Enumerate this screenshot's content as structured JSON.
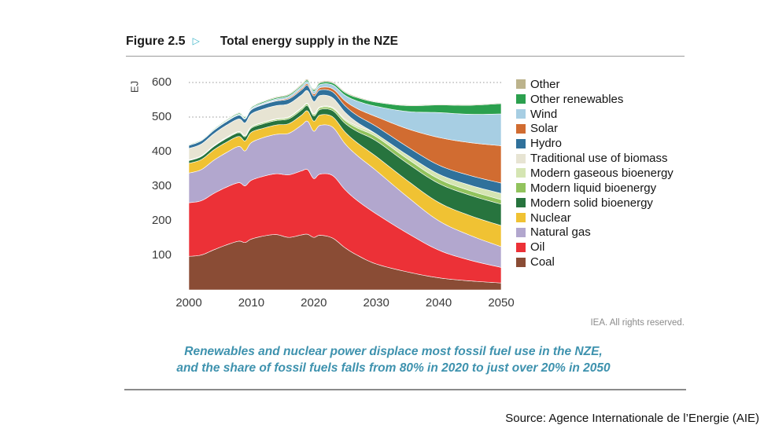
{
  "header": {
    "figure_label": "Figure 2.5",
    "arrow_glyph": "▷",
    "title": "Total energy supply in the NZE"
  },
  "notes": {
    "rights": "IEA. All rights reserved.",
    "source": "Source: Agence Internationale de l’Energie (AIE)"
  },
  "caption": {
    "line1": "Renewables and nuclear power displace most fossil fuel use in the NZE,",
    "line2": "and the share of fossil fuels falls from 80% in 2020 to just over 20% in 2050"
  },
  "colors": {
    "arrow_teal": "#3cb4c7",
    "caption_teal": "#3e92ae",
    "grid": "#8f8f8f",
    "axis_text": "#3a3a3a",
    "rights_gray": "#8b8b8b",
    "divider_top": "#9b9b9b",
    "divider_bottom": "#8a8a8a"
  },
  "chart_data": {
    "type": "area",
    "stacked": true,
    "title": "Total energy supply in the NZE",
    "xlabel": "",
    "ylabel": "EJ",
    "xlim": [
      2000,
      2050
    ],
    "ylim": [
      0,
      600
    ],
    "x_ticks": [
      2000,
      2010,
      2020,
      2030,
      2040,
      2050
    ],
    "y_ticks": [
      100,
      200,
      300,
      400,
      500,
      600
    ],
    "grid": "dotted horizontal gridlines behind areas",
    "legend_position": "right of plot, listed top-to-bottom in reverse stacking order",
    "years": [
      2000,
      2002,
      2004,
      2006,
      2008,
      2009,
      2010,
      2012,
      2014,
      2016,
      2018,
      2019,
      2020,
      2021,
      2023,
      2025,
      2027,
      2030,
      2035,
      2040,
      2045,
      2050
    ],
    "series": [
      {
        "name": "Coal",
        "color": "#8a4c35",
        "values": [
          97,
          101,
          116,
          130,
          141,
          137,
          147,
          156,
          160,
          152,
          159,
          161,
          152,
          158,
          150,
          122,
          100,
          75,
          52,
          35,
          26,
          20
        ]
      },
      {
        "name": "Oil",
        "color": "#ec3137",
        "values": [
          155,
          157,
          163,
          167,
          169,
          164,
          170,
          173,
          176,
          181,
          185,
          187,
          170,
          177,
          181,
          168,
          158,
          145,
          112,
          80,
          60,
          45
        ]
      },
      {
        "name": "Natural gas",
        "color": "#b2a7ce",
        "values": [
          86,
          90,
          96,
          100,
          105,
          101,
          109,
          112,
          114,
          120,
          132,
          140,
          137,
          141,
          140,
          133,
          130,
          125,
          105,
          85,
          72,
          60
        ]
      },
      {
        "name": "Nuclear",
        "color": "#f0c233",
        "values": [
          28,
          29,
          30,
          30,
          29,
          29,
          30,
          27,
          27,
          28,
          29,
          30,
          29,
          30,
          30,
          34,
          37,
          41,
          47,
          53,
          57,
          61
        ]
      },
      {
        "name": "Modern solid bioenergy",
        "color": "#27743e",
        "values": [
          8,
          9,
          10,
          11,
          11,
          12,
          12,
          13,
          13,
          14,
          15,
          15,
          15,
          16,
          18,
          25,
          33,
          45,
          50,
          55,
          59,
          62
        ]
      },
      {
        "name": "Modern liquid bioenergy",
        "color": "#92c35d",
        "values": [
          1,
          1,
          1.5,
          2,
          2.5,
          3,
          3,
          3.5,
          3.5,
          4,
          4.5,
          4.5,
          4.5,
          5,
          6,
          8,
          10,
          12,
          13,
          13,
          13,
          13
        ]
      },
      {
        "name": "Modern gaseous bioenergy",
        "color": "#d5e5b3",
        "values": [
          1,
          1,
          1,
          1,
          1,
          1,
          1,
          1,
          1.5,
          1.5,
          2,
          2,
          2.5,
          2.5,
          3,
          4,
          6,
          8,
          11,
          14,
          16,
          18
        ]
      },
      {
        "name": "Traditional use of biomass",
        "color": "#e7e4d3",
        "values": [
          33,
          34,
          34,
          35,
          36,
          36,
          37,
          38,
          38,
          38,
          37,
          37,
          35,
          33,
          28,
          20,
          10,
          0,
          0,
          0,
          0,
          0
        ]
      },
      {
        "name": "Hydro",
        "color": "#30719b",
        "values": [
          9,
          9.5,
          10,
          10.5,
          11,
          11.5,
          12,
          13,
          13.5,
          14,
          14.5,
          15,
          16,
          16,
          17,
          19,
          20,
          22,
          24,
          26,
          28,
          30
        ]
      },
      {
        "name": "Solar",
        "color": "#d16c31",
        "values": [
          0.3,
          0.3,
          0.4,
          0.5,
          0.6,
          0.8,
          1,
          1.5,
          2,
          3,
          4,
          4.5,
          5.5,
          6.5,
          9,
          14,
          20,
          28,
          52,
          80,
          95,
          108
        ]
      },
      {
        "name": "Wind",
        "color": "#a7cee3",
        "values": [
          0.5,
          0.7,
          1,
          1.5,
          2,
          2.5,
          3,
          3.5,
          4,
          5,
          6,
          6.5,
          7.5,
          9,
          11,
          16,
          22,
          30,
          50,
          72,
          82,
          92
        ]
      },
      {
        "name": "Other renewables",
        "color": "#2ba04e",
        "values": [
          2,
          2,
          2.5,
          2.5,
          3,
          3,
          3,
          3.5,
          3.5,
          4,
          4,
          4.5,
          4.5,
          5,
          6,
          8,
          10,
          12,
          17,
          22,
          26,
          30
        ]
      },
      {
        "name": "Other",
        "color": "#bcb38c",
        "values": [
          1.5,
          1.5,
          1.5,
          2,
          2,
          2,
          2,
          2,
          2.5,
          2.5,
          3,
          3,
          3,
          3,
          3,
          3,
          2.5,
          2,
          2,
          2,
          2,
          2
        ]
      }
    ]
  }
}
